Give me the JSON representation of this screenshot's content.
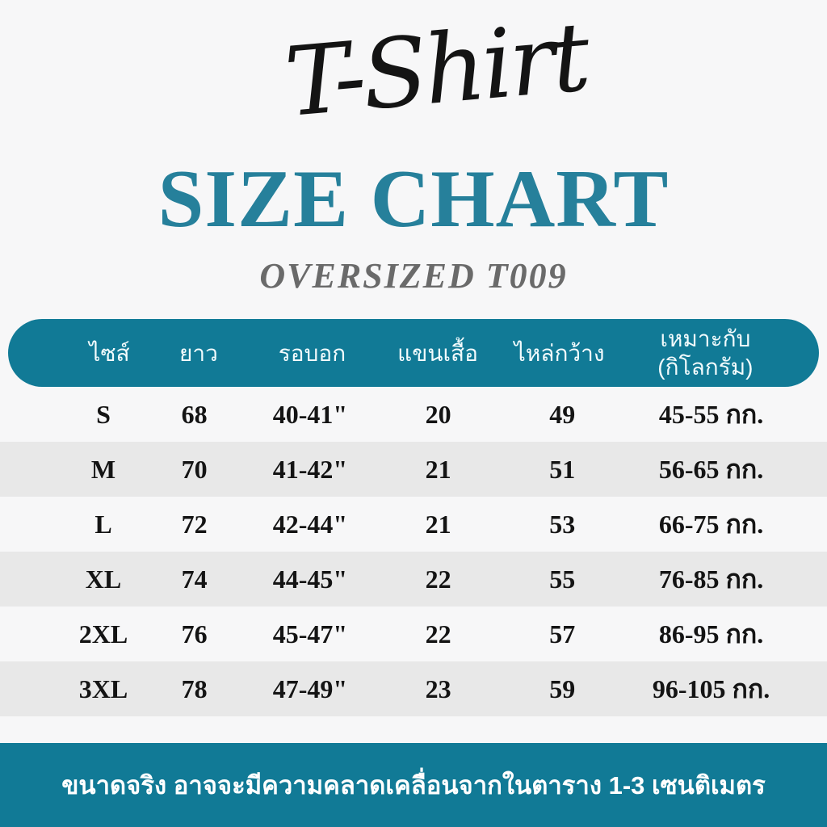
{
  "chart_data": {
    "type": "table",
    "title_script": "T-Shirt",
    "title": "SIZE CHART",
    "subtitle": "OVERSIZED T009",
    "columns": [
      "ไซส์",
      "ยาว",
      "รอบอก",
      "แขนเสื้อ",
      "ไหล่กว้าง",
      "เหมาะกับ\n(กิโลกรัม)"
    ],
    "column_meanings": [
      "size",
      "length",
      "chest",
      "sleeve",
      "shoulder-width",
      "suitable-weight-kg"
    ],
    "rows": [
      [
        "S",
        "68",
        "40-41\"",
        "20",
        "49",
        "45-55 กก."
      ],
      [
        "M",
        "70",
        "41-42\"",
        "21",
        "51",
        "56-65 กก."
      ],
      [
        "L",
        "72",
        "42-44\"",
        "21",
        "53",
        "66-75 กก."
      ],
      [
        "XL",
        "74",
        "44-45\"",
        "22",
        "55",
        "76-85 กก."
      ],
      [
        "2XL",
        "76",
        "45-47\"",
        "22",
        "57",
        "86-95 กก."
      ],
      [
        "3XL",
        "78",
        "47-49\"",
        "23",
        "59",
        "96-105 กก."
      ]
    ],
    "footnote": "ขนาดจริง อาจจะมีความคลาดเคลื่อนจากในตาราง 1-3 เซนติเมตร"
  },
  "colors": {
    "teal": "#117a96",
    "title_teal": "#26809b",
    "row_alt": "#e8e8e8",
    "background": "#f7f7f8",
    "subtitle_gray": "#6a6a6a",
    "text_dark": "#141414"
  }
}
